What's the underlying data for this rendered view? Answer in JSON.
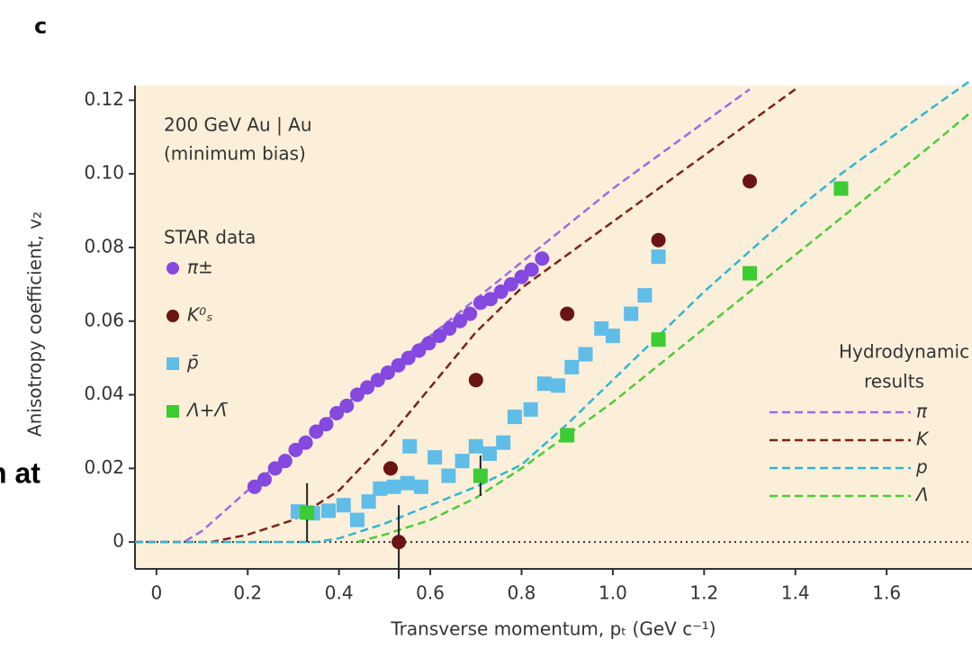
{
  "chart_data": {
    "type": "scatter",
    "panel_label": "c",
    "overlay_text": "n at",
    "annotation": [
      "200 GeV Au | Au",
      "(minimum bias)"
    ],
    "legend_title": "STAR data",
    "lines_legend_title": [
      "Hydrodynamic",
      "results"
    ],
    "x_label": "Transverse momentum, pₜ (GeV c⁻¹)",
    "y_label": "Anisotropy coefficient, v₂",
    "xlim": [
      -0.047,
      1.787
    ],
    "ylim": [
      -0.0073,
      0.124
    ],
    "xticks": [
      0,
      0.2,
      0.4,
      0.6,
      0.8,
      {
        "value": 1,
        "label": "1.0"
      },
      1.2,
      1.4,
      1.6
    ],
    "yticks": [
      0,
      0.02,
      0.04,
      0.06,
      0.08,
      {
        "value": 0.1,
        "label": "0.10"
      },
      0.12
    ],
    "background": "#fcefd9",
    "zero_line": true,
    "series": [
      {
        "name": "π±",
        "color": "#8549e0",
        "marker": "circle",
        "x": [
          0.215,
          0.237,
          0.26,
          0.282,
          0.305,
          0.327,
          0.35,
          0.372,
          0.395,
          0.417,
          0.44,
          0.462,
          0.485,
          0.507,
          0.53,
          0.552,
          0.575,
          0.597,
          0.62,
          0.642,
          0.665,
          0.687,
          0.71,
          0.732,
          0.755,
          0.777,
          0.8,
          0.822,
          0.845
        ],
        "values": [
          0.015,
          0.017,
          0.02,
          0.022,
          0.025,
          0.027,
          0.03,
          0.032,
          0.035,
          0.037,
          0.04,
          0.042,
          0.044,
          0.046,
          0.048,
          0.05,
          0.052,
          0.054,
          0.056,
          0.058,
          0.06,
          0.062,
          0.065,
          0.066,
          0.068,
          0.07,
          0.072,
          0.074,
          0.077
        ],
        "errors": [
          null,
          null,
          null,
          null,
          null,
          null,
          null,
          null,
          null,
          null,
          null,
          null,
          null,
          null,
          null,
          null,
          null,
          null,
          null,
          null,
          null,
          null,
          null,
          null,
          null,
          null,
          null,
          null,
          null
        ]
      },
      {
        "name": "K⁰ₛ",
        "color": "#6a1414",
        "marker": "circle",
        "x": [
          0.513,
          0.531,
          0.7,
          0.9,
          1.1,
          1.3
        ],
        "values": [
          0.02,
          0,
          0.044,
          0.062,
          0.082,
          0.098
        ],
        "errors": [
          null,
          0.01,
          null,
          null,
          null,
          null
        ]
      },
      {
        "name": "p̄",
        "color": "#5fbde8",
        "marker": "square",
        "x": [
          0.31,
          0.343,
          0.377,
          0.41,
          0.44,
          0.465,
          0.49,
          0.52,
          0.55,
          0.555,
          0.58,
          0.61,
          0.64,
          0.67,
          0.7,
          0.73,
          0.76,
          0.785,
          0.82,
          0.85,
          0.88,
          0.91,
          0.94,
          0.975,
          1.0,
          1.04,
          1.07,
          1.1
        ],
        "values": [
          0.0083,
          0.0078,
          0.0085,
          0.01,
          0.006,
          0.011,
          0.0145,
          0.015,
          0.016,
          0.026,
          0.015,
          0.023,
          0.018,
          0.022,
          0.026,
          0.024,
          0.027,
          0.034,
          0.036,
          0.043,
          0.0425,
          0.0475,
          0.051,
          0.058,
          0.056,
          0.062,
          0.067,
          0.0775
        ],
        "errors": [
          null,
          null,
          null,
          null,
          null,
          null,
          null,
          null,
          null,
          null,
          null,
          null,
          null,
          null,
          null,
          null,
          null,
          null,
          null,
          null,
          null,
          null,
          null,
          null,
          null,
          null,
          null,
          null
        ]
      },
      {
        "name": "Λ+Λ̄",
        "color": "#3ccc34",
        "marker": "square",
        "x": [
          0.33,
          0.71,
          0.9,
          1.1,
          1.3,
          1.5
        ],
        "values": [
          0.008,
          0.018,
          0.029,
          0.055,
          0.073,
          0.096
        ],
        "errors": [
          0.008,
          0.0055,
          null,
          null,
          null,
          null
        ]
      }
    ],
    "lines": [
      {
        "name": "π",
        "color": "#9b6be6",
        "x": [
          -0.047,
          0.06,
          0.1,
          0.2,
          0.3,
          0.4,
          0.5,
          0.6,
          0.7,
          0.8,
          0.9,
          1.0,
          1.1,
          1.2,
          1.3
        ],
        "values": [
          0,
          0,
          0.003,
          0.014,
          0.025,
          0.036,
          0.046,
          0.056,
          0.066,
          0.076,
          0.086,
          0.096,
          0.105,
          0.114,
          0.123
        ]
      },
      {
        "name": "K",
        "color": "#7a2418",
        "x": [
          -0.047,
          0.12,
          0.2,
          0.3,
          0.4,
          0.5,
          0.6,
          0.7,
          0.8,
          0.9,
          1.0,
          1.1,
          1.2,
          1.3,
          1.4
        ],
        "values": [
          0,
          0,
          0.002,
          0.006,
          0.014,
          0.027,
          0.042,
          0.057,
          0.069,
          0.078,
          0.087,
          0.096,
          0.105,
          0.114,
          0.123
        ]
      },
      {
        "name": "p",
        "color": "#2fb6d2",
        "x": [
          -0.047,
          0.35,
          0.4,
          0.5,
          0.6,
          0.7,
          0.8,
          0.9,
          1.0,
          1.1,
          1.2,
          1.3,
          1.4,
          1.5,
          1.6,
          1.7,
          1.78
        ],
        "values": [
          0,
          0,
          0.001,
          0.005,
          0.01,
          0.015,
          0.021,
          0.032,
          0.044,
          0.056,
          0.068,
          0.079,
          0.09,
          0.1,
          0.109,
          0.118,
          0.125
        ]
      },
      {
        "name": "Λ",
        "color": "#4ccc38",
        "x": [
          0.44,
          0.5,
          0.6,
          0.7,
          0.8,
          0.9,
          1.0,
          1.1,
          1.2,
          1.3,
          1.4,
          1.5,
          1.6,
          1.7,
          1.787
        ],
        "values": [
          0,
          0.002,
          0.006,
          0.012,
          0.02,
          0.029,
          0.038,
          0.048,
          0.058,
          0.068,
          0.078,
          0.088,
          0.098,
          0.108,
          0.117
        ]
      }
    ]
  }
}
